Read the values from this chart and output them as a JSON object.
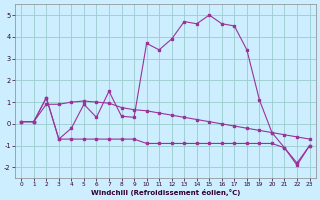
{
  "x": [
    0,
    1,
    2,
    3,
    4,
    5,
    6,
    7,
    8,
    9,
    10,
    11,
    12,
    13,
    14,
    15,
    16,
    17,
    18,
    19,
    20,
    21,
    22,
    23
  ],
  "line1": [
    0.1,
    0.1,
    1.2,
    -0.7,
    -0.2,
    0.9,
    0.3,
    1.5,
    0.35,
    0.3,
    3.7,
    3.4,
    3.9,
    4.7,
    4.6,
    5.0,
    4.6,
    4.5,
    3.4,
    1.1,
    -0.4,
    -1.1,
    -1.9,
    -1.0
  ],
  "line2": [
    0.1,
    0.1,
    0.9,
    0.9,
    1.0,
    1.05,
    1.0,
    0.95,
    0.75,
    0.65,
    0.6,
    0.5,
    0.4,
    0.3,
    0.2,
    0.1,
    0.0,
    -0.1,
    -0.2,
    -0.3,
    -0.4,
    -0.5,
    -0.6,
    -0.7
  ],
  "line3": [
    0.1,
    0.1,
    1.2,
    -0.7,
    -0.7,
    -0.7,
    -0.7,
    -0.7,
    -0.7,
    -0.7,
    -0.9,
    -0.9,
    -0.9,
    -0.9,
    -0.9,
    -0.9,
    -0.9,
    -0.9,
    -0.9,
    -0.9,
    -0.9,
    -1.1,
    -1.8,
    -1.0
  ],
  "color": "#993399",
  "bg_color": "#cceeff",
  "grid_color": "#99cccc",
  "xlabel": "Windchill (Refroidissement éolien,°C)",
  "ylim": [
    -2.5,
    5.5
  ],
  "xlim": [
    -0.5,
    23.5
  ],
  "yticks": [
    -2,
    -1,
    0,
    1,
    2,
    3,
    4,
    5
  ],
  "xticks": [
    0,
    1,
    2,
    3,
    4,
    5,
    6,
    7,
    8,
    9,
    10,
    11,
    12,
    13,
    14,
    15,
    16,
    17,
    18,
    19,
    20,
    21,
    22,
    23
  ]
}
